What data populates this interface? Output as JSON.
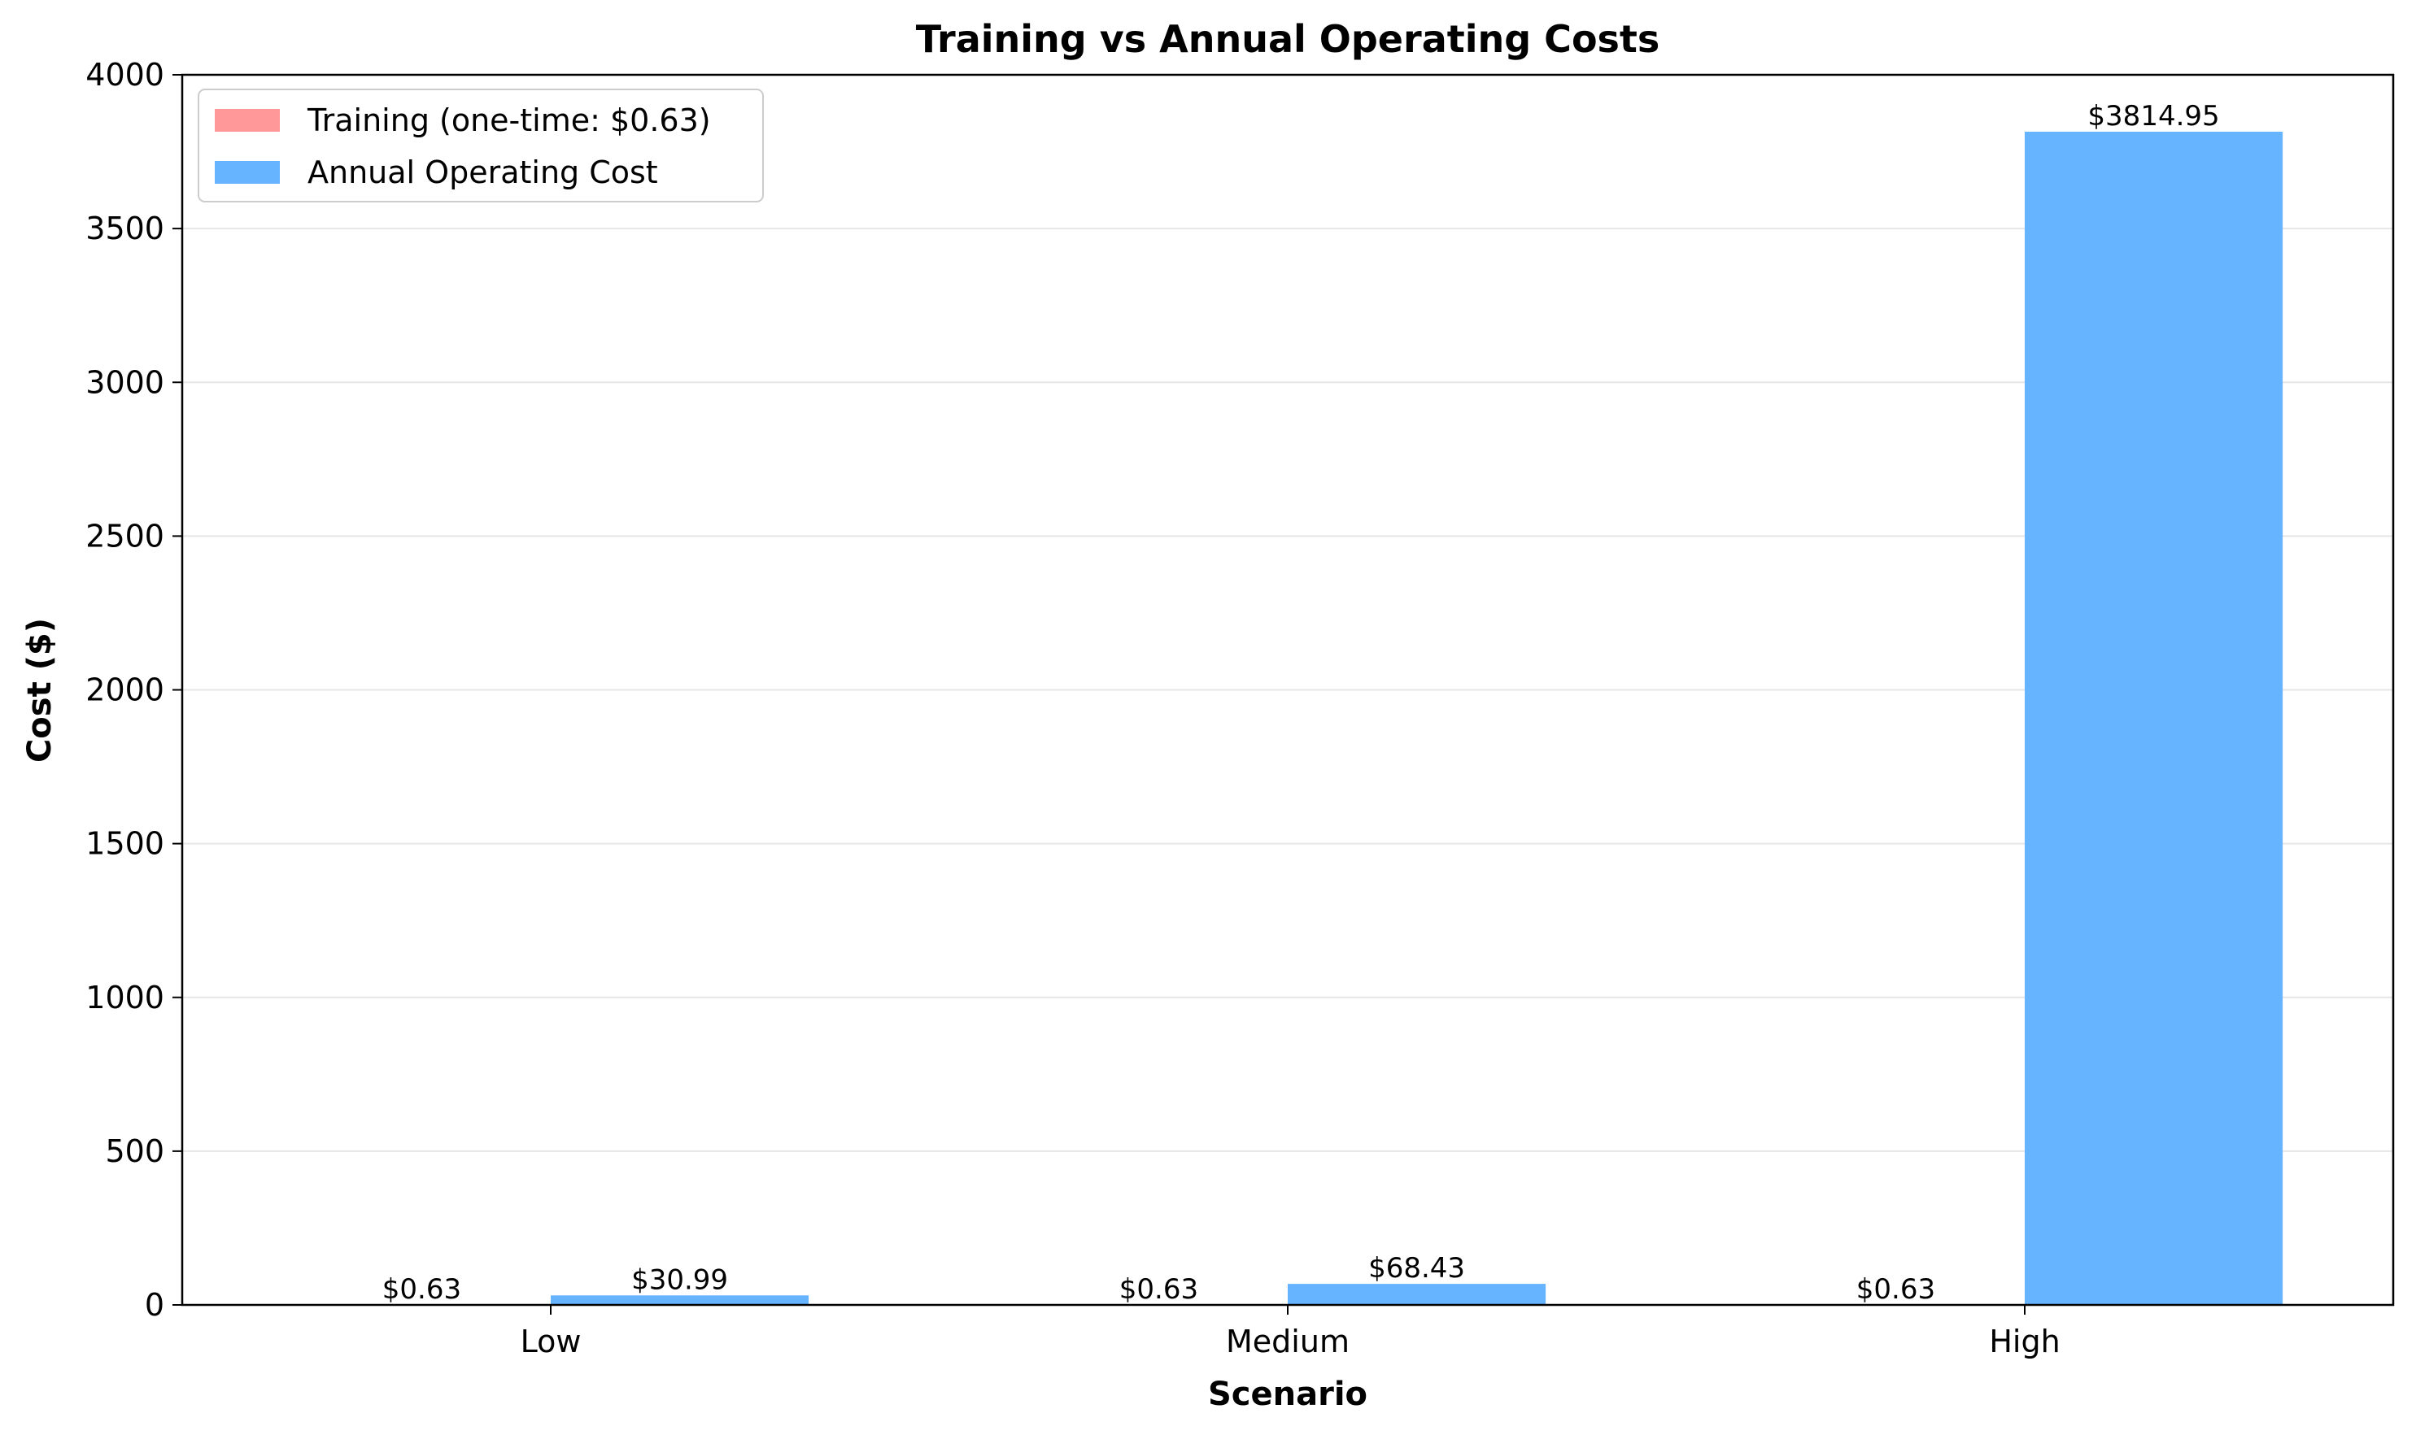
{
  "chart_data": {
    "type": "bar",
    "title": "Training vs Annual Operating Costs",
    "xlabel": "Scenario",
    "ylabel": "Cost ($)",
    "categories": [
      "Low",
      "Medium",
      "High"
    ],
    "ylim": [
      0,
      4000
    ],
    "yticks": [
      0,
      500,
      1000,
      1500,
      2000,
      2500,
      3000,
      3500,
      4000
    ],
    "grid": "y",
    "legend_position": "top-left",
    "series": [
      {
        "name": "Training (one-time: $0.63)",
        "color": "#ff9999",
        "values": [
          0.63,
          0.63,
          0.63
        ],
        "labels": [
          "$0.63",
          "$0.63",
          "$0.63"
        ]
      },
      {
        "name": "Annual Operating Cost",
        "color": "#66b3ff",
        "values": [
          30.99,
          68.43,
          3814.95
        ],
        "labels": [
          "$30.99",
          "$68.43",
          "$3814.95"
        ]
      }
    ]
  }
}
